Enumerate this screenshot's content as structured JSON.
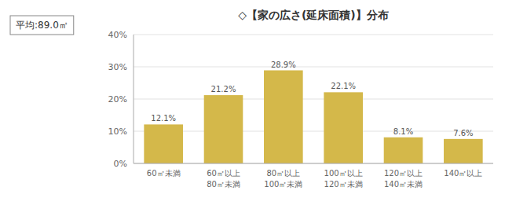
{
  "chart_data": {
    "type": "bar",
    "title": "◇【家の広さ(延床面積)】分布",
    "annotation": "平均:89.0㎡",
    "categories": [
      "60㎡未満",
      "60㎡以上\n80㎡未満",
      "80㎡以上\n100㎡未満",
      "100㎡以上\n120㎡未満",
      "120㎡以上\n140㎡未満",
      "140㎡以上"
    ],
    "values": [
      12.1,
      21.2,
      28.9,
      22.1,
      8.1,
      7.6
    ],
    "value_labels": [
      "12.1%",
      "21.2%",
      "28.9%",
      "22.1%",
      "8.1%",
      "7.6%"
    ],
    "color": "#D4B84A",
    "ylim": [
      0,
      40
    ],
    "yticks": [
      {
        "value": 0,
        "label": "0%"
      },
      {
        "value": 10,
        "label": "10%"
      },
      {
        "value": 20,
        "label": "20%"
      },
      {
        "value": 30,
        "label": "30%"
      },
      {
        "value": 40,
        "label": "40%"
      }
    ],
    "grid": true,
    "data_labels": true
  }
}
